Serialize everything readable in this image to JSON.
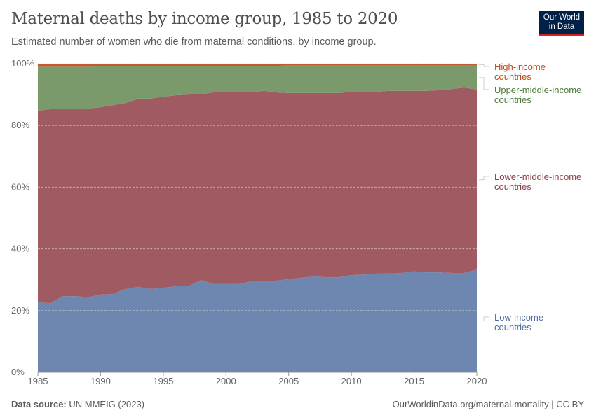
{
  "header": {
    "title": "Maternal deaths by income group, 1985 to 2020",
    "subtitle": "Estimated number of women who die from maternal conditions, by income group.",
    "logo": "Our World in Data"
  },
  "footer": {
    "source_label": "Data source:",
    "source": "UN MMEIG (2023)",
    "url": "OurWorldinData.org/maternal-mortality | CC BY"
  },
  "chart_data": {
    "type": "area",
    "stacked": "percent",
    "x": [
      1985,
      1986,
      1987,
      1988,
      1989,
      1990,
      1991,
      1992,
      1993,
      1994,
      1995,
      1996,
      1997,
      1998,
      1999,
      2000,
      2001,
      2002,
      2003,
      2004,
      2005,
      2006,
      2007,
      2008,
      2009,
      2010,
      2011,
      2012,
      2013,
      2014,
      2015,
      2016,
      2017,
      2018,
      2019,
      2020
    ],
    "x_ticks": [
      "1985",
      "1990",
      "1995",
      "2000",
      "2005",
      "2010",
      "2015",
      "2020"
    ],
    "y_ticks": [
      "0%",
      "20%",
      "40%",
      "60%",
      "80%",
      "100%"
    ],
    "ylim": [
      0,
      100
    ],
    "grid": "horizontal dashed",
    "legend": "right, inline labels",
    "series": [
      {
        "name": "Low-income countries",
        "color": "#6e87b0",
        "values": [
          22.7,
          22.4,
          24.7,
          24.7,
          24.3,
          25.2,
          25.4,
          27.0,
          27.7,
          27.0,
          27.4,
          27.9,
          27.9,
          29.9,
          28.6,
          28.6,
          28.6,
          29.5,
          29.7,
          29.7,
          30.2,
          30.6,
          31.1,
          30.8,
          30.8,
          31.5,
          31.7,
          32.0,
          32.0,
          32.2,
          32.7,
          32.4,
          32.4,
          32.2,
          32.2,
          33.3
        ]
      },
      {
        "name": "Lower-middle-income countries",
        "color": "#a05a62",
        "values": [
          62.1,
          62.9,
          60.8,
          60.8,
          61.2,
          60.7,
          61.2,
          60.3,
          61.0,
          61.7,
          61.9,
          61.9,
          62.1,
          60.3,
          62.1,
          62.1,
          62.3,
          61.2,
          61.5,
          61.0,
          60.3,
          59.9,
          59.4,
          59.7,
          59.7,
          59.4,
          59.0,
          58.9,
          59.2,
          59.0,
          58.5,
          58.8,
          59.0,
          59.6,
          60.1,
          58.3
        ]
      },
      {
        "name": "Upper-middle-income countries",
        "color": "#7a9a6c",
        "values": [
          14.2,
          13.7,
          13.5,
          13.5,
          13.5,
          13.3,
          12.6,
          11.9,
          10.5,
          10.5,
          10.0,
          9.5,
          9.3,
          9.1,
          8.6,
          8.6,
          8.4,
          8.6,
          8.1,
          8.6,
          8.9,
          8.9,
          8.9,
          8.9,
          8.9,
          8.5,
          8.7,
          8.5,
          8.2,
          8.2,
          8.2,
          8.2,
          8.0,
          7.6,
          7.1,
          7.8
        ]
      },
      {
        "name": "High-income countries",
        "color": "#c9582f",
        "values": [
          1.0,
          1.0,
          1.0,
          1.0,
          1.0,
          0.8,
          0.8,
          0.8,
          0.8,
          0.8,
          0.7,
          0.7,
          0.7,
          0.7,
          0.7,
          0.7,
          0.7,
          0.7,
          0.7,
          0.7,
          0.6,
          0.6,
          0.6,
          0.6,
          0.6,
          0.6,
          0.6,
          0.6,
          0.6,
          0.6,
          0.6,
          0.6,
          0.6,
          0.6,
          0.6,
          0.6
        ]
      }
    ],
    "labels": [
      {
        "line1": "High-income",
        "line2": "countries",
        "color": "#c04a1e"
      },
      {
        "line1": "Upper-middle-income",
        "line2": "countries",
        "color": "#4c7a3a"
      },
      {
        "line1": "Lower-middle-income",
        "line2": "countries",
        "color": "#8e3a44"
      },
      {
        "line1": "Low-income",
        "line2": "countries",
        "color": "#4e6fa5"
      }
    ]
  }
}
